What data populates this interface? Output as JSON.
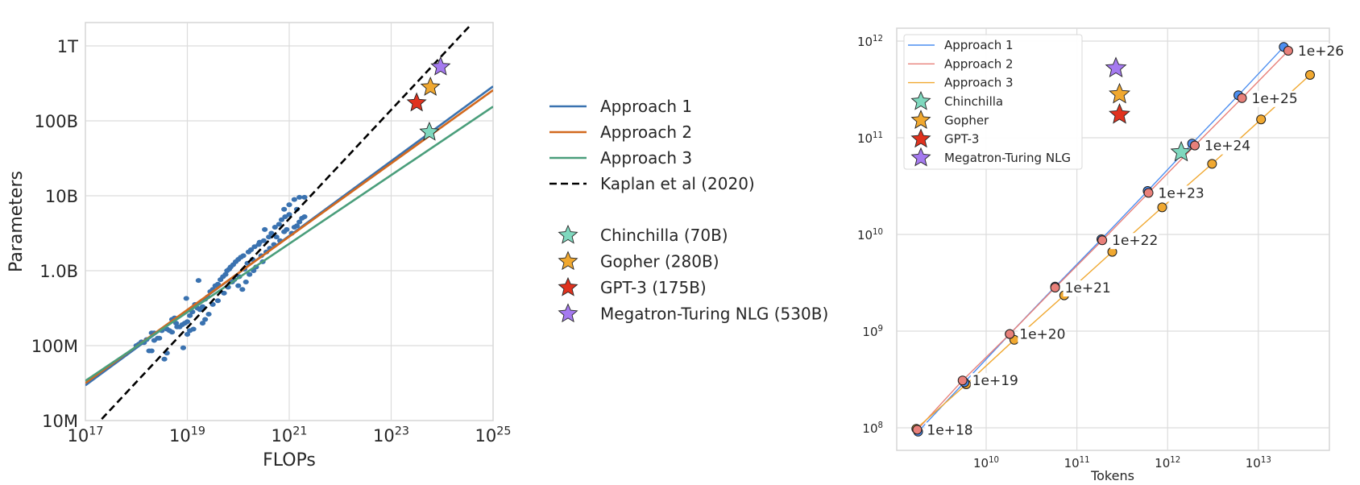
{
  "chart_data": [
    {
      "type": "scatter",
      "title": "",
      "xlabel": "FLOPs",
      "ylabel": "Parameters",
      "xscale": "log",
      "yscale": "log",
      "xlim": [
        1e+17,
        1e+25
      ],
      "ylim": [
        10000000.0,
        1600000000000.0
      ],
      "grid": true,
      "x_ticks": [
        {
          "value": 1e+17,
          "base": "10",
          "exp": "17"
        },
        {
          "value": 1e+19,
          "base": "10",
          "exp": "19"
        },
        {
          "value": 1e+21,
          "base": "10",
          "exp": "21"
        },
        {
          "value": 1e+23,
          "base": "10",
          "exp": "23"
        },
        {
          "value": 1e+25,
          "base": "10",
          "exp": "25"
        }
      ],
      "y_ticks": [
        {
          "value": 10000000.0,
          "label": "10M"
        },
        {
          "value": 100000000.0,
          "label": "100M"
        },
        {
          "value": 1000000000.0,
          "label": "1.0B"
        },
        {
          "value": 10000000000.0,
          "label": "10B"
        },
        {
          "value": 100000000000.0,
          "label": "100B"
        },
        {
          "value": 1000000000000.0,
          "label": "1T"
        }
      ],
      "legend_placement": "outside-right",
      "lines": [
        {
          "name": "Approach 1",
          "color": "#3a72b0",
          "style": "solid",
          "points_log10": [
            [
              17,
              7.47
            ],
            [
              25,
              11.46
            ]
          ]
        },
        {
          "name": "Approach 2",
          "color": "#d2691e",
          "style": "solid",
          "points_log10": [
            [
              17,
              7.5
            ],
            [
              25,
              11.41
            ]
          ]
        },
        {
          "name": "Approach 3",
          "color": "#4a9e7b",
          "style": "solid",
          "points_log10": [
            [
              17,
              7.53
            ],
            [
              25,
              11.19
            ]
          ]
        },
        {
          "name": "Kaplan et al (2020)",
          "color": "#000000",
          "style": "dashed",
          "points_log10": [
            [
              17.32,
              7.02
            ],
            [
              24.56,
              12.28
            ]
          ]
        }
      ],
      "scatter": {
        "name": "training runs",
        "color": "#3a72b0",
        "points_log10": [
          [
            18.0,
            8.0
          ],
          [
            18.05,
            8.02
          ],
          [
            18.1,
            8.05
          ],
          [
            18.15,
            8.04
          ],
          [
            18.2,
            8.08
          ],
          [
            18.25,
            7.93
          ],
          [
            18.3,
            7.93
          ],
          [
            18.35,
            8.07
          ],
          [
            18.3,
            8.17
          ],
          [
            18.35,
            8.17
          ],
          [
            18.42,
            8.1
          ],
          [
            18.45,
            8.1
          ],
          [
            18.5,
            8.2
          ],
          [
            18.55,
            7.82
          ],
          [
            18.6,
            7.9
          ],
          [
            18.6,
            8.22
          ],
          [
            18.65,
            8.2
          ],
          [
            18.7,
            8.18
          ],
          [
            18.7,
            8.35
          ],
          [
            18.75,
            8.37
          ],
          [
            18.78,
            8.3
          ],
          [
            18.8,
            8.25
          ],
          [
            18.85,
            8.25
          ],
          [
            18.9,
            8.28
          ],
          [
            18.92,
            7.97
          ],
          [
            18.95,
            8.3
          ],
          [
            19.0,
            8.32
          ],
          [
            18.98,
            8.63
          ],
          [
            19.05,
            8.4
          ],
          [
            19.1,
            8.45
          ],
          [
            19.0,
            8.15
          ],
          [
            19.05,
            8.2
          ],
          [
            19.12,
            8.22
          ],
          [
            19.15,
            8.55
          ],
          [
            19.2,
            8.5
          ],
          [
            19.22,
            8.87
          ],
          [
            19.25,
            8.48
          ],
          [
            19.3,
            8.52
          ],
          [
            19.3,
            8.3
          ],
          [
            19.35,
            8.35
          ],
          [
            19.35,
            8.62
          ],
          [
            19.4,
            8.65
          ],
          [
            19.42,
            8.42
          ],
          [
            19.45,
            8.72
          ],
          [
            19.5,
            8.75
          ],
          [
            19.5,
            8.55
          ],
          [
            19.55,
            8.8
          ],
          [
            19.6,
            8.82
          ],
          [
            19.6,
            8.6
          ],
          [
            19.65,
            8.88
          ],
          [
            19.7,
            8.92
          ],
          [
            19.72,
            8.7
          ],
          [
            19.75,
            8.95
          ],
          [
            19.78,
            9.0
          ],
          [
            19.8,
            8.78
          ],
          [
            19.82,
            9.02
          ],
          [
            19.85,
            9.05
          ],
          [
            19.88,
            8.85
          ],
          [
            19.9,
            9.08
          ],
          [
            19.92,
            8.88
          ],
          [
            19.95,
            9.12
          ],
          [
            20.0,
            9.15
          ],
          [
            20.0,
            8.8
          ],
          [
            20.02,
            8.92
          ],
          [
            20.05,
            9.18
          ],
          [
            20.08,
            8.75
          ],
          [
            20.1,
            9.2
          ],
          [
            20.12,
            9.02
          ],
          [
            20.15,
            8.85
          ],
          [
            20.18,
            9.1
          ],
          [
            20.2,
            9.25
          ],
          [
            20.22,
            8.95
          ],
          [
            20.25,
            9.28
          ],
          [
            20.28,
            9.15
          ],
          [
            20.3,
            9.0
          ],
          [
            20.32,
            9.32
          ],
          [
            20.35,
            9.05
          ],
          [
            20.4,
            9.35
          ],
          [
            20.42,
            9.38
          ],
          [
            20.45,
            9.2
          ],
          [
            20.48,
            9.12
          ],
          [
            20.5,
            9.4
          ],
          [
            20.52,
            9.55
          ],
          [
            20.55,
            9.25
          ],
          [
            20.6,
            9.45
          ],
          [
            20.62,
            9.3
          ],
          [
            20.65,
            9.5
          ],
          [
            20.7,
            9.35
          ],
          [
            20.72,
            9.58
          ],
          [
            20.75,
            9.45
          ],
          [
            20.8,
            9.62
          ],
          [
            20.82,
            9.4
          ],
          [
            20.85,
            9.68
          ],
          [
            20.9,
            9.52
          ],
          [
            20.92,
            9.72
          ],
          [
            20.95,
            9.55
          ],
          [
            21.0,
            9.75
          ],
          [
            21.05,
            9.5
          ],
          [
            21.1,
            9.58
          ],
          [
            21.15,
            9.6
          ],
          [
            21.2,
            9.65
          ],
          [
            21.25,
            9.7
          ],
          [
            21.3,
            9.72
          ],
          [
            20.9,
            9.82
          ],
          [
            21.0,
            9.88
          ],
          [
            21.1,
            9.95
          ],
          [
            21.15,
            9.82
          ],
          [
            21.2,
            9.98
          ],
          [
            21.3,
            9.98
          ]
        ]
      },
      "stars": [
        {
          "name": "Chinchilla (70B)",
          "color": "#7fd8be",
          "flops_log10": 23.75,
          "params_log10": 10.85
        },
        {
          "name": "Gopher (280B)",
          "color": "#f0a830",
          "flops_log10": 23.77,
          "params_log10": 11.45
        },
        {
          "name": "GPT-3 (175B)",
          "color": "#e0321e",
          "flops_log10": 23.5,
          "params_log10": 11.24
        },
        {
          "name": "Megatron-Turing NLG (530B)",
          "color": "#a57af0",
          "flops_log10": 23.97,
          "params_log10": 11.72
        }
      ]
    },
    {
      "type": "line",
      "title": "",
      "xlabel": "Tokens",
      "ylabel": "",
      "xscale": "log",
      "yscale": "log",
      "xlim": [
        1040000000.0,
        60000000000000.0
      ],
      "ylim": [
        57000000.0,
        1450000000000.0
      ],
      "grid": true,
      "x_ticks": [
        {
          "value": 10000000000.0,
          "base": "10",
          "exp": "10"
        },
        {
          "value": 100000000000.0,
          "base": "10",
          "exp": "11"
        },
        {
          "value": 1000000000000.0,
          "base": "10",
          "exp": "12"
        },
        {
          "value": 10000000000000.0,
          "base": "10",
          "exp": "13"
        }
      ],
      "y_ticks": [
        {
          "value": 100000000.0,
          "base": "10",
          "exp": "8"
        },
        {
          "value": 1000000000.0,
          "base": "10",
          "exp": "9"
        },
        {
          "value": 10000000000.0,
          "base": "10",
          "exp": "10"
        },
        {
          "value": 100000000000.0,
          "base": "10",
          "exp": "11"
        },
        {
          "value": 1000000000000.0,
          "base": "10",
          "exp": "12"
        }
      ],
      "legend_placement": "top-left",
      "flop_labels": [
        "1e+18",
        "1e+19",
        "1e+20",
        "1e+21",
        "1e+22",
        "1e+23",
        "1e+24",
        "1e+25",
        "1e+26"
      ],
      "series": [
        {
          "name": "Approach 1",
          "color": "#4c8ef0",
          "tokens_log10": [
            9.25,
            9.76,
            10.26,
            10.76,
            11.27,
            11.78,
            12.27,
            12.78,
            13.28
          ],
          "params_log10": [
            7.96,
            8.47,
            8.97,
            9.46,
            9.95,
            10.45,
            10.94,
            11.44,
            11.94
          ]
        },
        {
          "name": "Approach 2",
          "color": "#e8807a",
          "tokens_log10": [
            9.24,
            9.74,
            10.26,
            10.76,
            11.28,
            11.79,
            12.3,
            12.82,
            13.33
          ],
          "params_log10": [
            7.98,
            8.49,
            8.97,
            9.45,
            9.94,
            10.43,
            10.92,
            11.41,
            11.9
          ]
        },
        {
          "name": "Approach 3",
          "color": "#f0a830",
          "tokens_log10": [
            9.23,
            9.78,
            10.31,
            10.86,
            11.39,
            11.94,
            12.49,
            13.03,
            13.57
          ],
          "params_log10": [
            7.99,
            8.45,
            8.91,
            9.37,
            9.82,
            10.28,
            10.73,
            11.19,
            11.65
          ]
        }
      ],
      "stars": [
        {
          "name": "Chinchilla",
          "color": "#7fd8be",
          "tokens_log10": 12.15,
          "params_log10": 10.85
        },
        {
          "name": "Gopher",
          "color": "#f0a830",
          "tokens_log10": 11.47,
          "params_log10": 11.45
        },
        {
          "name": "GPT-3",
          "color": "#e0321e",
          "tokens_log10": 11.47,
          "params_log10": 11.24
        },
        {
          "name": "Megatron-Turing NLG",
          "color": "#a57af0",
          "tokens_log10": 11.43,
          "params_log10": 11.72
        }
      ]
    }
  ]
}
